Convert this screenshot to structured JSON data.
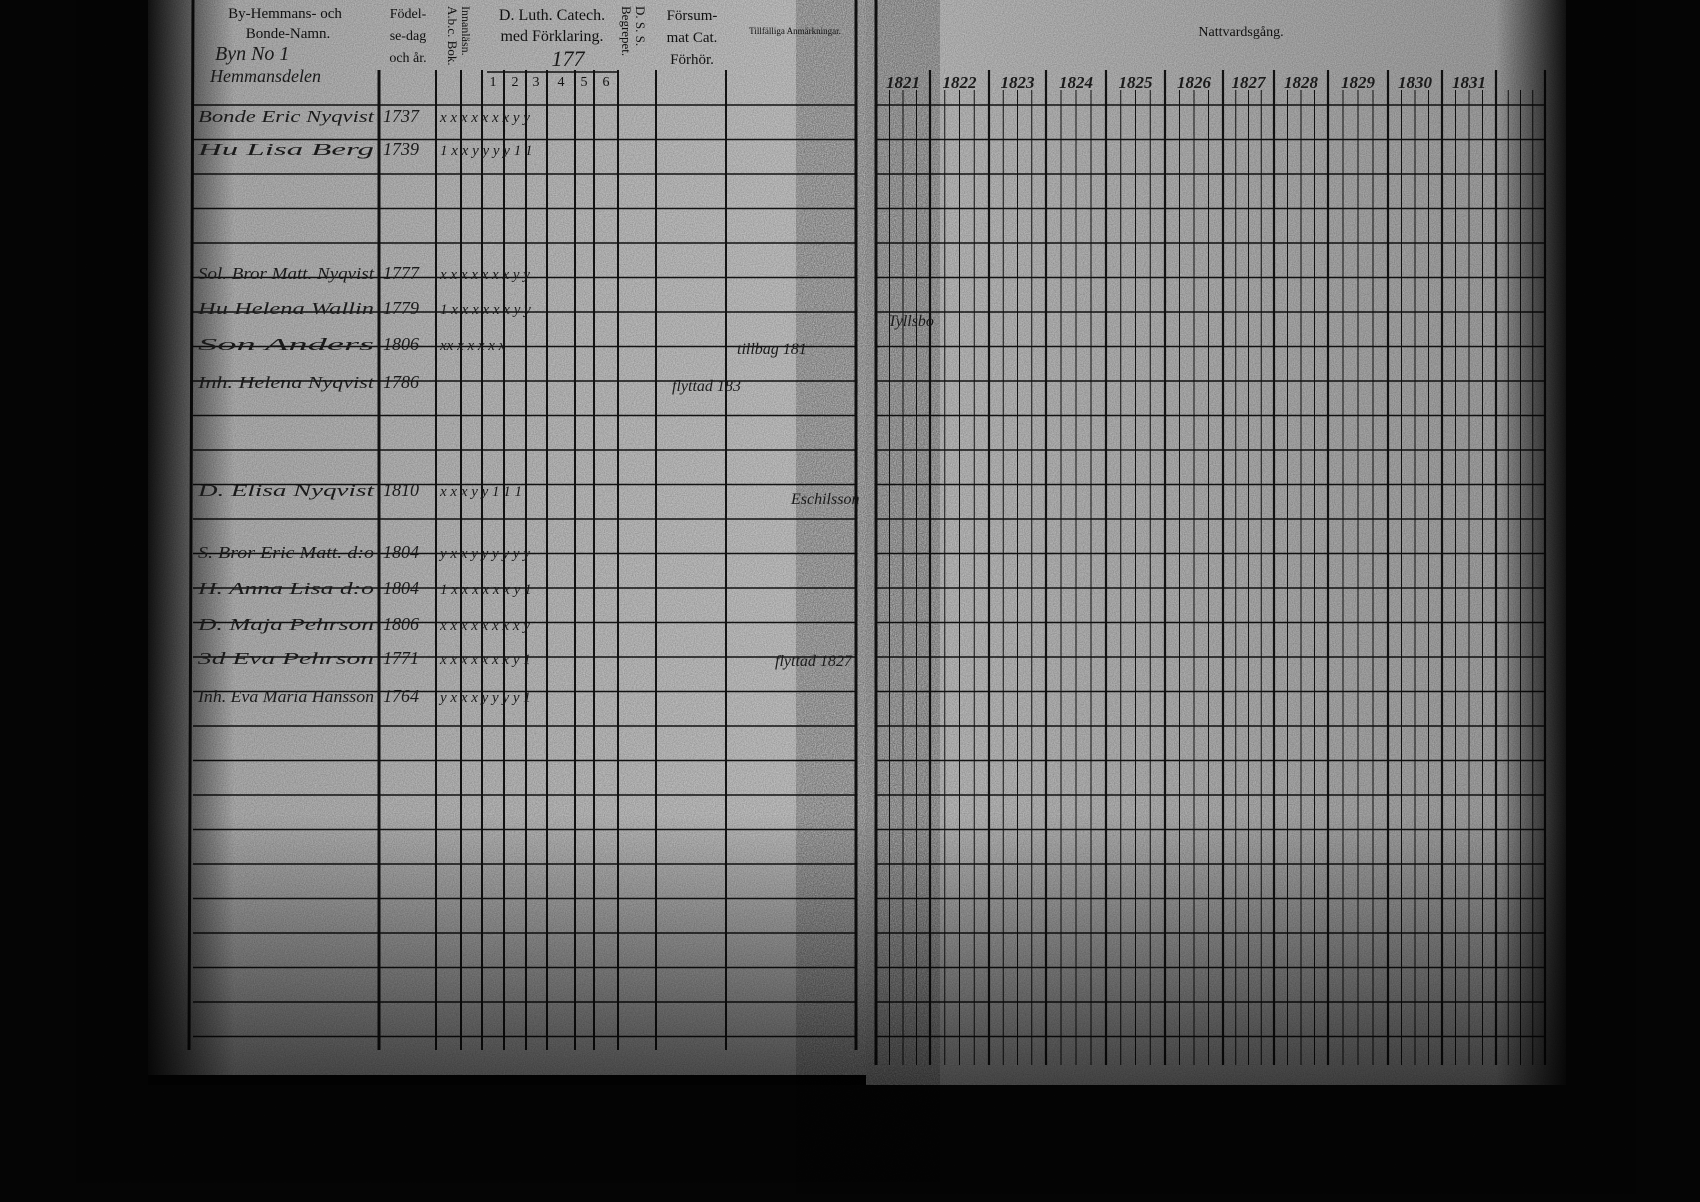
{
  "left_page": {
    "columns": [
      {
        "lines": [
          "By-Hemmans- och",
          "Bonde-Namn."
        ]
      },
      {
        "lines": [
          "Födel-",
          "se-dag",
          "och år."
        ]
      },
      {
        "lines": [
          "A.b.c. Bok."
        ]
      },
      {
        "lines": [
          "Innanläsn."
        ]
      },
      {
        "lines": [
          "D. Luth. Catech.",
          "med Förklaring."
        ]
      },
      {
        "lines": [
          "D. S. S.",
          "Begrepet."
        ]
      },
      {
        "lines": [
          "Försum-",
          "mat Cat.",
          "Förhör."
        ]
      },
      {
        "lines": [
          "Tillfälliga Anmärkningar."
        ]
      }
    ],
    "catechism_parts": [
      "1",
      "2",
      "3",
      "4",
      "5",
      "6"
    ],
    "village": [
      "Byn No 1",
      "Hemmansdelen"
    ],
    "page_number": "177",
    "rows": [
      {
        "name": "Bonde Eric Nyqvist",
        "born": "1737",
        "marks": "x  x  x  x  x  x  x  y  y"
      },
      {
        "name": "Hu Lisa Berg",
        "born": "1739",
        "marks": "1  x  x  y  y  y  y  1  1"
      },
      {
        "name": "Sol. Bror Matt. Nyqvist",
        "born": "1777",
        "marks": "x  x  x  x  x  x  x  y  y"
      },
      {
        "name": "Hu Helena Wallin",
        "born": "1779",
        "marks": "1  x  x  x  x  x  x  y  y"
      },
      {
        "name": "Son Anders",
        "born": "1806",
        "marks": "xx  x  x  x  x  x"
      },
      {
        "name": "Inh. Helena Nyqvist",
        "born": "1786",
        "marks": ""
      },
      {
        "name": "D. Elisa Nyqvist",
        "born": "1810",
        "marks": "x  x  x  y  y  1  1  1"
      },
      {
        "name": "S. Bror Eric Matt. d:o",
        "born": "1804",
        "marks": "y  x  x  y  y  y  y  y  y"
      },
      {
        "name": "H. Anna Lisa d:o",
        "born": "1804",
        "marks": "1  x  x  x  x  x  x  y  1"
      },
      {
        "name": "D. Maja Pehrson",
        "born": "1806",
        "marks": "x  x  x  x  x  x  x  x  y"
      },
      {
        "name": "3d Eva Pehrson",
        "born": "1771",
        "marks": "x  x  x  x  x  x  x  y  1"
      },
      {
        "name": "Inh. Eva Maria Hansson",
        "born": "1764",
        "marks": "y  x  x  x  y  y  y  y  1"
      }
    ],
    "notes": [
      "tillbag 181",
      "flyttad 183",
      "Eschilsson",
      "flyttad 1827"
    ]
  },
  "right_page": {
    "title": "Nattvardsgång.",
    "years": [
      "1821",
      "1822",
      "1823",
      "1824",
      "1825",
      "1826",
      "1827",
      "1828",
      "1829",
      "1830",
      "1831"
    ],
    "notes": [
      "Tyllsbo"
    ]
  }
}
